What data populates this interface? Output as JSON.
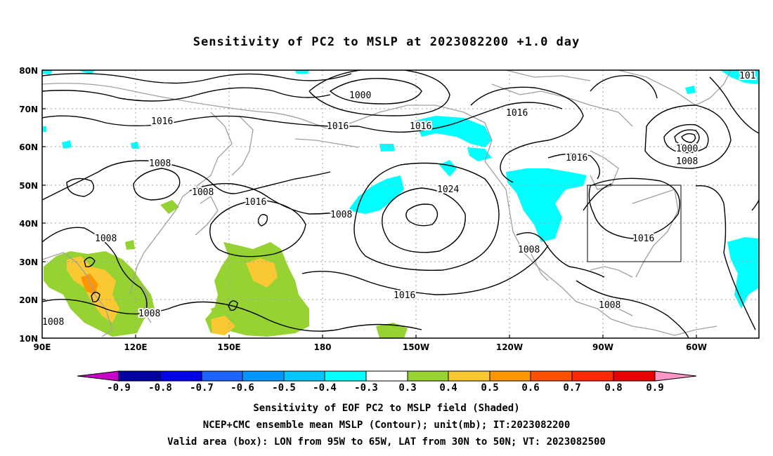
{
  "title": "Sensitivity of PC2 to MSLP at 2023082200 +1.0 day",
  "lat_labels": [
    "80N",
    "70N",
    "60N",
    "50N",
    "40N",
    "30N",
    "20N",
    "10N"
  ],
  "lon_labels": [
    "90E",
    "120E",
    "150E",
    "180",
    "150W",
    "120W",
    "90W",
    "60W"
  ],
  "contour_labels": [
    {
      "text": "1000"
    },
    {
      "text": "1016"
    },
    {
      "text": "1016"
    },
    {
      "text": "1016"
    },
    {
      "text": "1016"
    },
    {
      "text": "1008"
    },
    {
      "text": "1008"
    },
    {
      "text": "1016"
    },
    {
      "text": "1008"
    },
    {
      "text": "1024"
    },
    {
      "text": "1016"
    },
    {
      "text": "1000"
    },
    {
      "text": "1008"
    },
    {
      "text": "1008"
    },
    {
      "text": "1016"
    },
    {
      "text": "1016"
    },
    {
      "text": "1008"
    },
    {
      "text": "1008"
    },
    {
      "text": "1008"
    },
    {
      "text": "101"
    }
  ],
  "colorbar": {
    "labels": [
      "-0.9",
      "-0.8",
      "-0.7",
      "-0.6",
      "-0.5",
      "-0.4",
      "-0.3",
      "0.3",
      "0.4",
      "0.5",
      "0.6",
      "0.7",
      "0.8",
      "0.9"
    ],
    "colors": [
      "#c800c8",
      "#0000a0",
      "#0000e6",
      "#1e64ff",
      "#0096ff",
      "#00c8ff",
      "#00ffff",
      "#ffffff",
      "#96d232",
      "#fac832",
      "#ff9600",
      "#ff5000",
      "#ff2800",
      "#e60000",
      "#ff96c8"
    ]
  },
  "caption": {
    "line1": "Sensitivity of EOF PC2 to MSLP field (Shaded)",
    "line2": "NCEP+CMC ensemble mean MSLP (Contour); unit(mb); IT:2023082200",
    "line3": "Valid area (box): LON from 95W to 65W, LAT from 30N to 50N; VT: 2023082500"
  },
  "colors": {
    "land_outline": "#a0a0a0",
    "contour": "#000000",
    "grid": "#a0a0a0",
    "cyan_shade": "#00ffff",
    "green_shade": "#96d232",
    "yellow_shade": "#fac832",
    "orange_shade": "#ff9600"
  }
}
